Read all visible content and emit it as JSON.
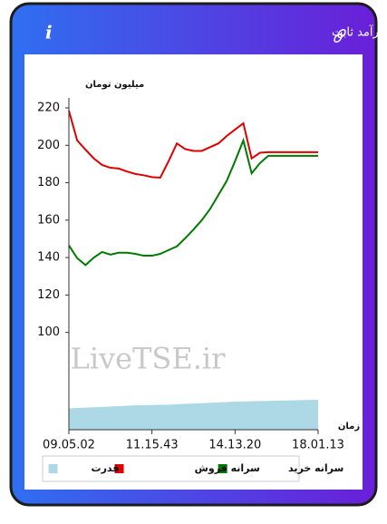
{
  "header": {
    "title": "سرانه ی خرید و فروش حقیقی در صندوق های درآمد ثابت"
  },
  "chart_data": {
    "type": "line",
    "y_label": "میلیون تومان",
    "x_label": "زمان",
    "watermark": "LiveTSE.ir",
    "categories": [
      "09.05.02",
      null,
      null,
      null,
      null,
      null,
      null,
      null,
      null,
      null,
      "11.15.43",
      null,
      null,
      null,
      null,
      null,
      null,
      null,
      null,
      null,
      "14.13.20",
      null,
      null,
      null,
      null,
      null,
      null,
      null,
      null,
      null,
      "18.01.13"
    ],
    "ylim": [
      48,
      220
    ],
    "yticks": [
      100,
      120,
      140,
      160,
      180,
      200,
      220
    ],
    "series": [
      {
        "name": "سرانه خرید",
        "color": "#007a00",
        "kind": "line",
        "values": [
          146.5,
          139.7,
          136,
          140,
          143,
          141.6,
          142.6,
          142.6,
          142,
          141,
          141,
          142,
          144,
          146,
          150.3,
          155,
          160,
          166,
          173.5,
          181,
          191.5,
          202.6,
          185,
          190.5,
          194.4,
          194.4,
          194.4,
          194.4,
          194.4,
          194.4,
          194.4
        ]
      },
      {
        "name": "سرانه فروش",
        "color": "#e00000",
        "kind": "line",
        "values": [
          218.5,
          202.6,
          197.7,
          193,
          189.5,
          188,
          187.6,
          186,
          184.7,
          184,
          183,
          182.7,
          191.5,
          201,
          198,
          197,
          197,
          199,
          201,
          205,
          208.4,
          211.8,
          193,
          196,
          196.3,
          196.3,
          196.3,
          196.3,
          196.3,
          196.3,
          196.3
        ]
      },
      {
        "name": "قدرت",
        "color": "#add8e6",
        "kind": "area",
        "values": [
          59.4,
          59.6,
          59.8,
          60,
          60.2,
          60.4,
          60.6,
          60.8,
          61,
          61.1,
          61.2,
          61.3,
          61.4,
          61.6,
          61.8,
          62,
          62.2,
          62.4,
          62.6,
          62.8,
          63,
          63.1,
          63.2,
          63.3,
          63.4,
          63.5,
          63.6,
          63.7,
          63.8,
          63.9,
          64
        ]
      }
    ]
  }
}
